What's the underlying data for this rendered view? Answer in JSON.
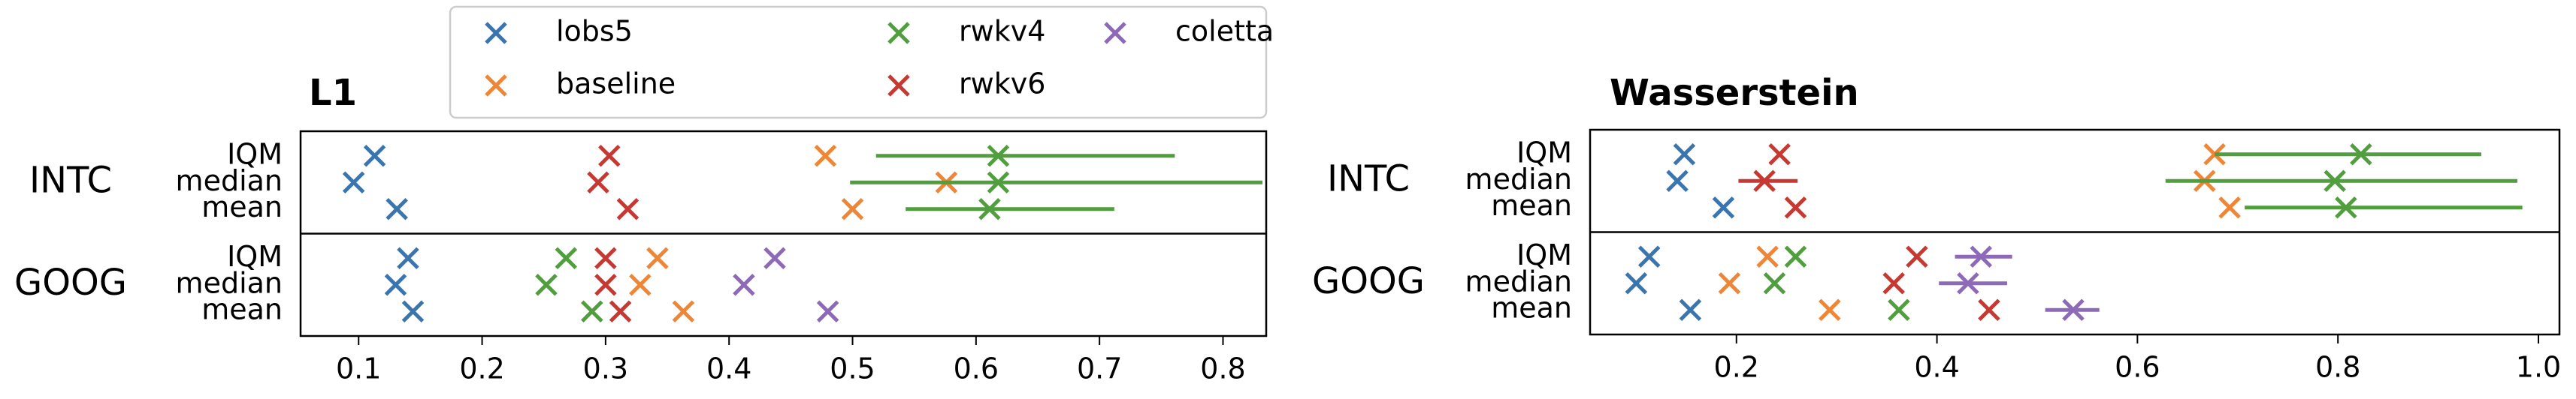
{
  "chart_data": [
    {
      "type": "dot-errorbar",
      "title": "L1",
      "groups": [
        "INTC",
        "GOOG"
      ],
      "stats": [
        "IQM",
        "median",
        "mean"
      ],
      "xlim": [
        0.053,
        0.835
      ],
      "xticks": [
        0.1,
        0.2,
        0.3,
        0.4,
        0.5,
        0.6,
        0.7,
        0.8
      ],
      "legend": "top-center",
      "series": [
        {
          "name": "lobs5",
          "color": "#3a75b0",
          "values": [
            [
              0.113,
              0.096,
              0.131
            ],
            [
              0.14,
              0.13,
              0.144
            ]
          ],
          "xerr": [
            [
              null,
              null,
              null
            ],
            [
              null,
              null,
              null
            ]
          ]
        },
        {
          "name": "baseline",
          "color": "#ef8636",
          "values": [
            [
              0.478,
              0.576,
              0.5
            ],
            [
              0.342,
              0.328,
              0.363
            ]
          ],
          "xerr": [
            [
              null,
              null,
              null
            ],
            [
              null,
              null,
              null
            ]
          ]
        },
        {
          "name": "rwkv4",
          "color": "#519e3e",
          "values": [
            [
              0.618,
              0.618,
              0.611
            ],
            [
              0.268,
              0.252,
              0.289
            ]
          ],
          "xerr": [
            [
              [
                0.519,
                0.761
              ],
              [
                0.498,
                0.832
              ],
              [
                0.543,
                0.712
              ]
            ],
            [
              null,
              null,
              null
            ]
          ]
        },
        {
          "name": "rwkv6",
          "color": "#c53932",
          "values": [
            [
              0.303,
              0.294,
              0.318
            ],
            [
              0.3,
              0.3,
              0.312
            ]
          ],
          "xerr": [
            [
              null,
              null,
              null
            ],
            [
              null,
              null,
              null
            ]
          ]
        },
        {
          "name": "coletta",
          "color": "#8d69b8",
          "values": [
            [
              null,
              null,
              null
            ],
            [
              0.437,
              0.412,
              0.48
            ]
          ],
          "xerr": [
            [
              null,
              null,
              null
            ],
            [
              null,
              null,
              null
            ]
          ]
        }
      ]
    },
    {
      "type": "dot-errorbar",
      "title": "Wasserstein",
      "groups": [
        "INTC",
        "GOOG"
      ],
      "stats": [
        "IQM",
        "median",
        "mean"
      ],
      "xlim": [
        0.054,
        1.021
      ],
      "xticks": [
        0.2,
        0.4,
        0.6,
        0.8,
        {
          "value": 1,
          "label": "1.0"
        }
      ],
      "series": [
        {
          "name": "lobs5",
          "color": "#3a75b0",
          "values": [
            [
              0.148,
              0.141,
              0.187
            ],
            [
              0.113,
              0.1,
              0.154
            ]
          ],
          "xerr": [
            [
              null,
              null,
              null
            ],
            [
              null,
              null,
              null
            ]
          ]
        },
        {
          "name": "baseline",
          "color": "#ef8636",
          "values": [
            [
              0.677,
              0.667,
              0.692
            ],
            [
              0.231,
              0.193,
              0.293
            ]
          ],
          "xerr": [
            [
              null,
              null,
              null
            ],
            [
              null,
              null,
              null
            ]
          ]
        },
        {
          "name": "rwkv4",
          "color": "#519e3e",
          "values": [
            [
              0.823,
              0.797,
              0.808
            ],
            [
              0.259,
              0.238,
              0.362
            ]
          ],
          "xerr": [
            [
              [
                0.677,
                0.943
              ],
              [
                0.628,
                0.979
              ],
              [
                0.707,
                0.984
              ]
            ],
            [
              null,
              null,
              null
            ]
          ]
        },
        {
          "name": "rwkv6",
          "color": "#c53932",
          "values": [
            [
              0.243,
              0.228,
              0.259
            ],
            [
              0.38,
              0.357,
              0.452
            ]
          ],
          "xerr": [
            [
              null,
              [
                0.202,
                0.261
              ],
              null
            ],
            [
              null,
              null,
              null
            ]
          ]
        },
        {
          "name": "coletta",
          "color": "#8d69b8",
          "values": [
            [
              null,
              null,
              null
            ],
            [
              0.444,
              0.431,
              0.536
            ]
          ],
          "xerr": [
            [
              null,
              null,
              null
            ],
            [
              [
                0.418,
                0.475
              ],
              [
                0.402,
                0.47
              ],
              [
                0.508,
                0.562
              ]
            ]
          ]
        }
      ]
    }
  ]
}
